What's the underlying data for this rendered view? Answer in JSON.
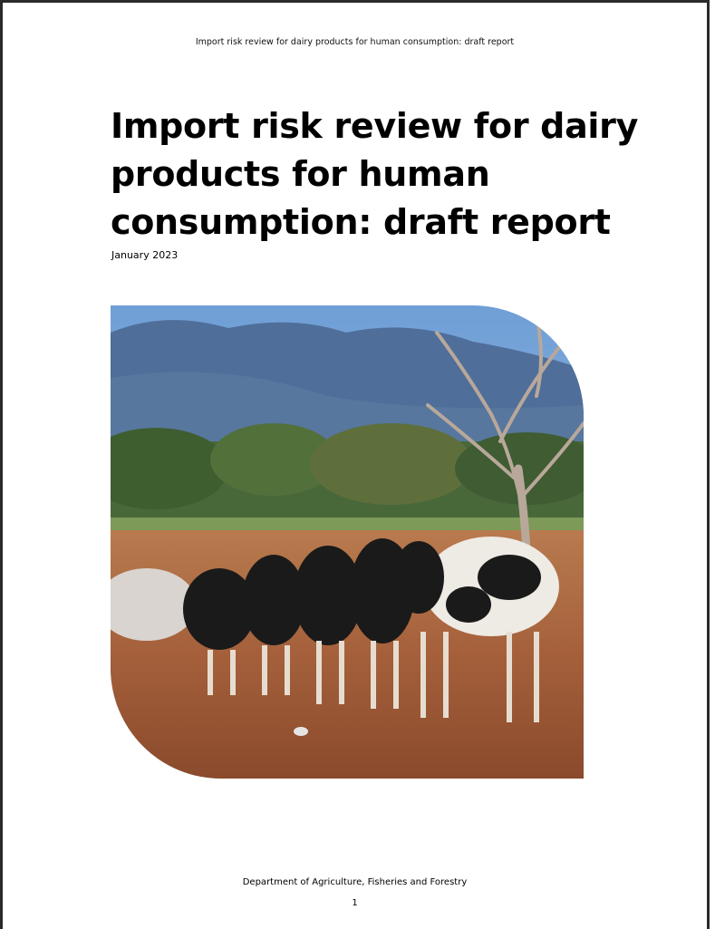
{
  "header": {
    "running_title": "Import risk review for dairy products for human consumption: draft report"
  },
  "cover": {
    "title_lines": [
      "Import risk review for dairy",
      "products for human",
      "consumption: draft report"
    ],
    "date": "January 2023"
  },
  "footer": {
    "department": "Department of Agriculture, Fisheries and Forestry",
    "page_number": "1"
  }
}
